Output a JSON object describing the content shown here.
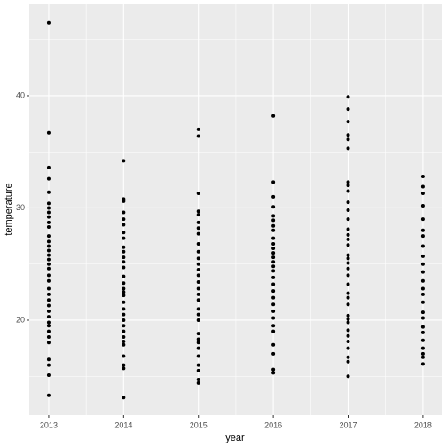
{
  "chart_data": {
    "type": "scatter",
    "x_label": "year",
    "y_label": "temperature",
    "x": [
      2013,
      2013,
      2013,
      2013,
      2013,
      2013,
      2013,
      2013,
      2013,
      2013,
      2013,
      2013,
      2013,
      2013,
      2013,
      2013,
      2013,
      2013,
      2013,
      2013,
      2013,
      2013,
      2013,
      2013,
      2013,
      2013,
      2013,
      2013,
      2013,
      2013,
      2013,
      2013,
      2013,
      2013,
      2013,
      2013,
      2014,
      2014,
      2014,
      2014,
      2014,
      2014,
      2014,
      2014,
      2014,
      2014,
      2014,
      2014,
      2014,
      2014,
      2014,
      2014,
      2014,
      2014,
      2014,
      2014,
      2014,
      2014,
      2014,
      2014,
      2014,
      2014,
      2014,
      2014,
      2014,
      2014,
      2014,
      2015,
      2015,
      2015,
      2015,
      2015,
      2015,
      2015,
      2015,
      2015,
      2015,
      2015,
      2015,
      2015,
      2015,
      2015,
      2015,
      2015,
      2015,
      2015,
      2015,
      2015,
      2015,
      2015,
      2015,
      2015,
      2015,
      2015,
      2015,
      2015,
      2015,
      2016,
      2016,
      2016,
      2016,
      2016,
      2016,
      2016,
      2016,
      2016,
      2016,
      2016,
      2016,
      2016,
      2016,
      2016,
      2016,
      2016,
      2016,
      2016,
      2016,
      2016,
      2016,
      2016,
      2016,
      2016,
      2016,
      2016,
      2016,
      2016,
      2017,
      2017,
      2017,
      2017,
      2017,
      2017,
      2017,
      2017,
      2017,
      2017,
      2017,
      2017,
      2017,
      2017,
      2017,
      2017,
      2017,
      2017,
      2017,
      2017,
      2017,
      2017,
      2017,
      2017,
      2017,
      2017,
      2017,
      2017,
      2017,
      2017,
      2017,
      2017,
      2017,
      2017,
      2017,
      2018,
      2018,
      2018,
      2018,
      2018,
      2018,
      2018,
      2018,
      2018,
      2018,
      2018,
      2018,
      2018,
      2018,
      2018,
      2018,
      2018,
      2018,
      2018,
      2018,
      2018,
      2018,
      2018,
      2018
    ],
    "y": [
      46.5,
      36.7,
      33.6,
      32.6,
      31.4,
      30.4,
      30.0,
      29.6,
      29.2,
      28.7,
      28.3,
      27.5,
      27.0,
      26.6,
      26.2,
      25.8,
      25.4,
      25.0,
      24.6,
      24.0,
      23.5,
      22.8,
      22.3,
      21.8,
      21.3,
      20.8,
      20.3,
      19.8,
      19.5,
      19.0,
      18.5,
      18.0,
      16.5,
      16.0,
      15.1,
      13.3,
      34.2,
      30.8,
      30.6,
      29.6,
      29.0,
      28.5,
      27.8,
      27.3,
      26.5,
      26.1,
      25.6,
      25.2,
      24.7,
      23.9,
      23.3,
      22.8,
      22.5,
      22.2,
      21.6,
      21.0,
      20.5,
      20.0,
      19.5,
      19.0,
      18.5,
      18.1,
      17.8,
      16.8,
      16.0,
      15.7,
      13.1,
      37.0,
      36.4,
      31.3,
      29.7,
      29.4,
      28.7,
      28.2,
      27.7,
      26.8,
      26.1,
      25.5,
      25.0,
      24.5,
      24.0,
      23.4,
      22.8,
      22.3,
      21.8,
      21.0,
      20.5,
      20.0,
      18.8,
      18.3,
      18.0,
      17.5,
      16.8,
      16.0,
      15.5,
      14.7,
      14.4,
      38.2,
      32.3,
      31.0,
      30.1,
      29.3,
      28.9,
      28.4,
      28.0,
      27.3,
      26.8,
      26.4,
      26.0,
      25.6,
      25.2,
      24.8,
      24.4,
      23.8,
      23.2,
      22.6,
      22.0,
      21.4,
      20.8,
      20.2,
      19.5,
      19.0,
      17.8,
      17.0,
      15.6,
      15.3,
      39.9,
      38.8,
      37.7,
      36.5,
      36.1,
      35.3,
      32.3,
      32.0,
      31.5,
      30.5,
      29.8,
      29.0,
      28.1,
      27.6,
      27.2,
      26.7,
      25.8,
      25.5,
      25.1,
      24.6,
      24.0,
      23.2,
      22.4,
      22.0,
      21.4,
      20.4,
      20.1,
      19.8,
      19.1,
      18.6,
      18.1,
      17.5,
      16.7,
      16.3,
      15.0,
      32.8,
      31.9,
      31.3,
      30.2,
      29.0,
      28.0,
      27.5,
      26.6,
      25.7,
      25.0,
      24.3,
      23.5,
      22.8,
      22.3,
      21.6,
      20.7,
      20.2,
      19.4,
      18.9,
      18.2,
      17.5,
      17.0,
      16.7,
      16.1
    ],
    "color": "#000000",
    "xlim": [
      2012.74,
      2018.25
    ],
    "ylim": [
      11.54,
      48.14
    ],
    "xticks": [
      2013,
      2014,
      2015,
      2016,
      2017,
      2018
    ],
    "yticks": [
      20,
      30,
      40
    ],
    "x_minor_ticks": [
      2013.5,
      2014.5,
      2015.5,
      2016.5,
      2017.5
    ],
    "y_minor_ticks": [
      15,
      25,
      35,
      45
    ],
    "grid": true,
    "panel_color": "#ebebeb",
    "grid_color": "#ffffff"
  }
}
